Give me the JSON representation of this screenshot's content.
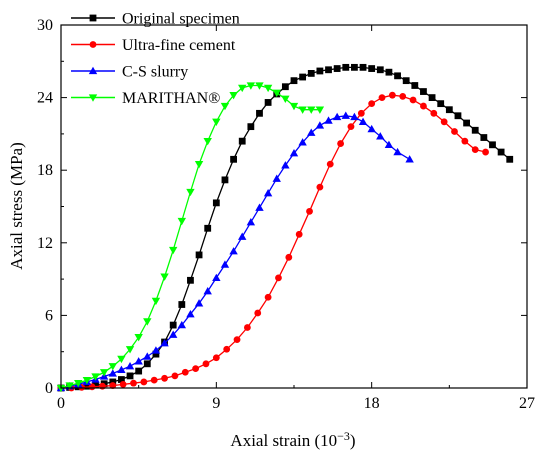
{
  "chart_data": {
    "type": "line",
    "xlabel": "Axial strain (10",
    "xlabel_sup": "−3",
    "xlabel_close": ")",
    "ylabel": "Axial stress (MPa)",
    "xlim": [
      0,
      27
    ],
    "ylim": [
      0,
      30
    ],
    "xticks": [
      0,
      9,
      18,
      27
    ],
    "yticks": [
      0,
      6,
      12,
      18,
      24,
      30
    ],
    "grid": false,
    "legend_position": "top-left",
    "series": [
      {
        "name": "Original specimen",
        "color": "#000000",
        "marker": "square",
        "x": [
          0.0,
          0.5,
          1.0,
          1.5,
          2.0,
          2.5,
          3.0,
          3.5,
          4.0,
          4.5,
          5.0,
          5.5,
          6.0,
          6.5,
          7.0,
          7.5,
          8.0,
          8.5,
          9.0,
          9.5,
          10.0,
          10.5,
          11.0,
          11.5,
          12.0,
          12.5,
          13.0,
          13.5,
          14.0,
          14.5,
          15.0,
          15.5,
          16.0,
          16.5,
          17.0,
          17.5,
          18.0,
          18.5,
          19.0,
          19.5,
          20.0,
          20.5,
          21.0,
          21.5,
          22.0,
          22.5,
          23.0,
          23.5,
          24.0,
          24.5,
          25.0,
          25.5,
          26.0
        ],
        "y": [
          0.0,
          0.05,
          0.1,
          0.15,
          0.25,
          0.35,
          0.5,
          0.7,
          1.0,
          1.4,
          2.0,
          2.8,
          3.8,
          5.2,
          6.9,
          8.9,
          11.0,
          13.2,
          15.3,
          17.2,
          18.9,
          20.4,
          21.6,
          22.7,
          23.6,
          24.3,
          24.9,
          25.4,
          25.7,
          26.0,
          26.2,
          26.3,
          26.4,
          26.5,
          26.5,
          26.5,
          26.4,
          26.3,
          26.1,
          25.8,
          25.4,
          25.0,
          24.5,
          24.0,
          23.5,
          23.0,
          22.5,
          21.9,
          21.3,
          20.7,
          20.1,
          19.5,
          18.9
        ]
      },
      {
        "name": "Ultra-fine cement",
        "color": "#ff0000",
        "marker": "circle",
        "x": [
          0.0,
          0.6,
          1.2,
          1.8,
          2.4,
          3.0,
          3.6,
          4.2,
          4.8,
          5.4,
          6.0,
          6.6,
          7.2,
          7.8,
          8.4,
          9.0,
          9.6,
          10.2,
          10.8,
          11.4,
          12.0,
          12.6,
          13.2,
          13.8,
          14.4,
          15.0,
          15.6,
          16.2,
          16.8,
          17.4,
          18.0,
          18.6,
          19.2,
          19.8,
          20.4,
          21.0,
          21.6,
          22.2,
          22.8,
          23.4,
          24.0,
          24.6
        ],
        "y": [
          0.0,
          0.0,
          0.05,
          0.1,
          0.15,
          0.2,
          0.3,
          0.4,
          0.5,
          0.65,
          0.8,
          1.0,
          1.3,
          1.6,
          2.0,
          2.5,
          3.2,
          4.0,
          5.0,
          6.2,
          7.5,
          9.1,
          10.8,
          12.7,
          14.6,
          16.6,
          18.5,
          20.2,
          21.6,
          22.7,
          23.5,
          24.0,
          24.2,
          24.1,
          23.8,
          23.3,
          22.7,
          22.0,
          21.2,
          20.4,
          19.7,
          19.5
        ]
      },
      {
        "name": "C-S slurry",
        "color": "#0000ff",
        "marker": "triangle-up",
        "x": [
          0.0,
          0.5,
          1.0,
          1.5,
          2.0,
          2.5,
          3.0,
          3.5,
          4.0,
          4.5,
          5.0,
          5.5,
          6.0,
          6.5,
          7.0,
          7.5,
          8.0,
          8.5,
          9.0,
          9.5,
          10.0,
          10.5,
          11.0,
          11.5,
          12.0,
          12.5,
          13.0,
          13.5,
          14.0,
          14.5,
          15.0,
          15.5,
          16.0,
          16.5,
          17.0,
          17.5,
          18.0,
          18.5,
          19.0,
          19.5,
          20.2
        ],
        "y": [
          0.0,
          0.15,
          0.3,
          0.5,
          0.7,
          0.95,
          1.2,
          1.5,
          1.8,
          2.2,
          2.6,
          3.1,
          3.7,
          4.4,
          5.2,
          6.1,
          7.0,
          8.0,
          9.1,
          10.2,
          11.3,
          12.5,
          13.7,
          14.9,
          16.1,
          17.3,
          18.4,
          19.4,
          20.3,
          21.1,
          21.7,
          22.1,
          22.4,
          22.5,
          22.4,
          22.0,
          21.4,
          20.8,
          20.1,
          19.5,
          18.9
        ]
      },
      {
        "name": "MARITHAN®",
        "color": "#00ff00",
        "marker": "triangle-down",
        "x": [
          0.0,
          0.5,
          1.0,
          1.5,
          2.0,
          2.5,
          3.0,
          3.5,
          4.0,
          4.5,
          5.0,
          5.5,
          6.0,
          6.5,
          7.0,
          7.5,
          8.0,
          8.5,
          9.0,
          9.5,
          10.0,
          10.5,
          11.0,
          11.5,
          12.0,
          12.5,
          13.0,
          13.5,
          14.0,
          14.5,
          15.0
        ],
        "y": [
          0.0,
          0.2,
          0.4,
          0.65,
          0.95,
          1.3,
          1.8,
          2.4,
          3.2,
          4.2,
          5.5,
          7.2,
          9.2,
          11.4,
          13.8,
          16.2,
          18.5,
          20.4,
          22.0,
          23.3,
          24.2,
          24.8,
          25.0,
          25.0,
          24.8,
          24.4,
          23.9,
          23.3,
          23.0,
          23.0,
          23.0
        ]
      }
    ]
  }
}
